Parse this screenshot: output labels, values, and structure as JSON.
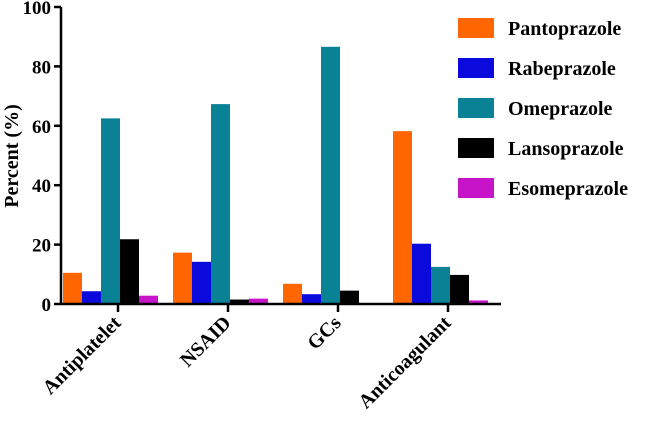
{
  "chart_data": {
    "type": "bar",
    "title": "",
    "xlabel": "",
    "ylabel": "Percent (%)",
    "ylim": [
      0,
      100
    ],
    "yticks": [
      0,
      20,
      40,
      60,
      80,
      100
    ],
    "grid": false,
    "legend_position": "right",
    "categories": [
      "Antiplatelet",
      "NSAID",
      "GCs",
      "Anticoagulant"
    ],
    "series": [
      {
        "name": "Pantoprazole",
        "color": "#FF6600",
        "values": [
          10.5,
          17.3,
          6.8,
          58.2
        ]
      },
      {
        "name": "Rabeprazole",
        "color": "#0A0ADC",
        "values": [
          4.3,
          14.2,
          3.3,
          20.3
        ]
      },
      {
        "name": "Omeprazole",
        "color": "#0A8296",
        "values": [
          62.5,
          67.3,
          86.6,
          12.5
        ]
      },
      {
        "name": "Lansoprazole",
        "color": "#000000",
        "values": [
          21.8,
          1.5,
          4.5,
          9.8
        ]
      },
      {
        "name": "Esomeprazole",
        "color": "#C814C8",
        "values": [
          2.8,
          1.8,
          0,
          1.2
        ]
      }
    ]
  }
}
